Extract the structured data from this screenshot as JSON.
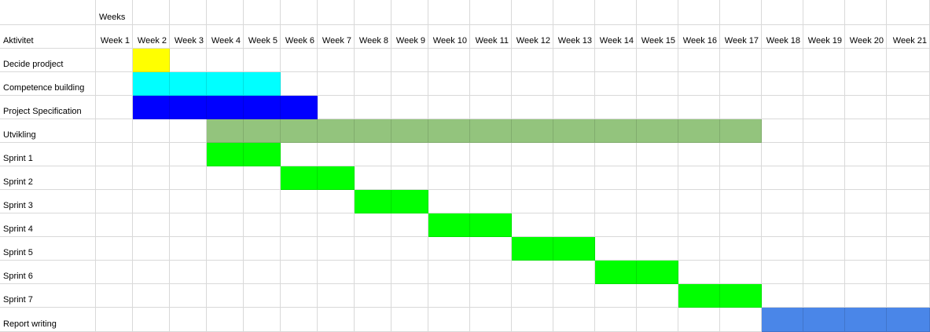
{
  "header": {
    "weeks_label": "Weeks",
    "activity_label": "Aktivitet"
  },
  "weeks": [
    "Week 1",
    "Week 2",
    "Week 3",
    "Week 4",
    "Week 5",
    "Week 6",
    "Week 7",
    "Week 8",
    "Week 9",
    "Week 10",
    "Week 11",
    "Week 12",
    "Week 13",
    "Week 14",
    "Week 15",
    "Week 16",
    "Week 17",
    "Week 18",
    "Week 19",
    "Week 20",
    "Week 21"
  ],
  "chart_data": {
    "type": "table",
    "categories": [
      "Week 1",
      "Week 2",
      "Week 3",
      "Week 4",
      "Week 5",
      "Week 6",
      "Week 7",
      "Week 8",
      "Week 9",
      "Week 10",
      "Week 11",
      "Week 12",
      "Week 13",
      "Week 14",
      "Week 15",
      "Week 16",
      "Week 17",
      "Week 18",
      "Week 19",
      "Week 20",
      "Week 21"
    ],
    "tasks": [
      {
        "label": "Decide prodject",
        "start_week": 2,
        "end_week": 2,
        "color": "#ffff00"
      },
      {
        "label": "Competence building",
        "start_week": 2,
        "end_week": 5,
        "color": "#00ffff"
      },
      {
        "label": "Project Specification",
        "start_week": 2,
        "end_week": 6,
        "color": "#0000ff"
      },
      {
        "label": "Utvikling",
        "start_week": 4,
        "end_week": 17,
        "color": "#93c47d"
      },
      {
        "label": "Sprint 1",
        "start_week": 4,
        "end_week": 5,
        "color": "#00ff00"
      },
      {
        "label": "Sprint 2",
        "start_week": 6,
        "end_week": 7,
        "color": "#00ff00"
      },
      {
        "label": "Sprint 3",
        "start_week": 8,
        "end_week": 9,
        "color": "#00ff00"
      },
      {
        "label": "Sprint 4",
        "start_week": 10,
        "end_week": 11,
        "color": "#00ff00"
      },
      {
        "label": "Sprint 5",
        "start_week": 12,
        "end_week": 13,
        "color": "#00ff00"
      },
      {
        "label": "Sprint 6",
        "start_week": 14,
        "end_week": 15,
        "color": "#00ff00"
      },
      {
        "label": "Sprint 7",
        "start_week": 16,
        "end_week": 17,
        "color": "#00ff00"
      },
      {
        "label": "Report writing",
        "start_week": 18,
        "end_week": 21,
        "color": "#4a86e8"
      }
    ]
  }
}
